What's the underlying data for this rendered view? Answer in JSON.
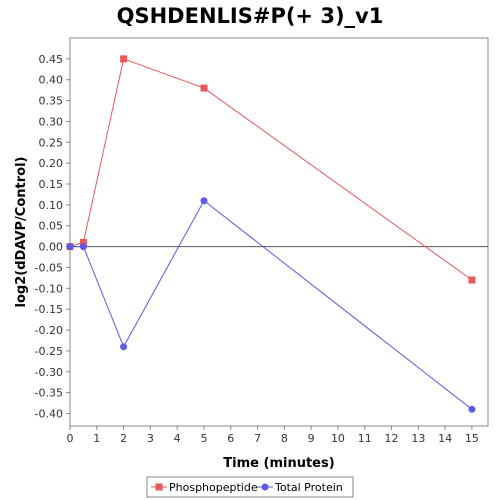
{
  "chart_data": {
    "type": "line",
    "title": "QSHDENLIS#P(+ 3)_v1",
    "xlabel": "Time (minutes)",
    "ylabel": "log2(dDAVP/Control)",
    "xlim": [
      0,
      15.6
    ],
    "ylim": [
      -0.43,
      0.5
    ],
    "x_ticks": [
      0,
      1,
      2,
      3,
      4,
      5,
      6,
      7,
      8,
      9,
      10,
      11,
      12,
      13,
      14,
      15
    ],
    "y_ticks": [
      0.45,
      0.4,
      0.35,
      0.3,
      0.25,
      0.2,
      0.15,
      0.1,
      0.05,
      0.0,
      -0.05,
      -0.1,
      -0.15,
      -0.2,
      -0.25,
      -0.3,
      -0.35,
      -0.4
    ],
    "y_tick_labels": [
      "0.45",
      "0.40",
      "0.35",
      "0.30",
      "0.25",
      "0.20",
      "0.15",
      "0.10",
      "0.05",
      "0.00",
      "-0.05",
      "-0.10",
      "-0.15",
      "-0.20",
      "-0.25",
      "-0.30",
      "-0.35",
      "-0.40"
    ],
    "zero_line": true,
    "legend_position": "bottom",
    "series": [
      {
        "name": "Phosphopeptide",
        "color": "#e8595a",
        "marker": "square",
        "x": [
          0,
          0.5,
          2,
          5,
          15
        ],
        "y": [
          0.0,
          0.01,
          0.45,
          0.38,
          -0.08
        ]
      },
      {
        "name": "Total Protein",
        "color": "#5b5be8",
        "marker": "circle",
        "x": [
          0,
          0.5,
          2,
          5,
          15
        ],
        "y": [
          0.0,
          0.0,
          -0.24,
          0.11,
          -0.39
        ]
      }
    ]
  }
}
